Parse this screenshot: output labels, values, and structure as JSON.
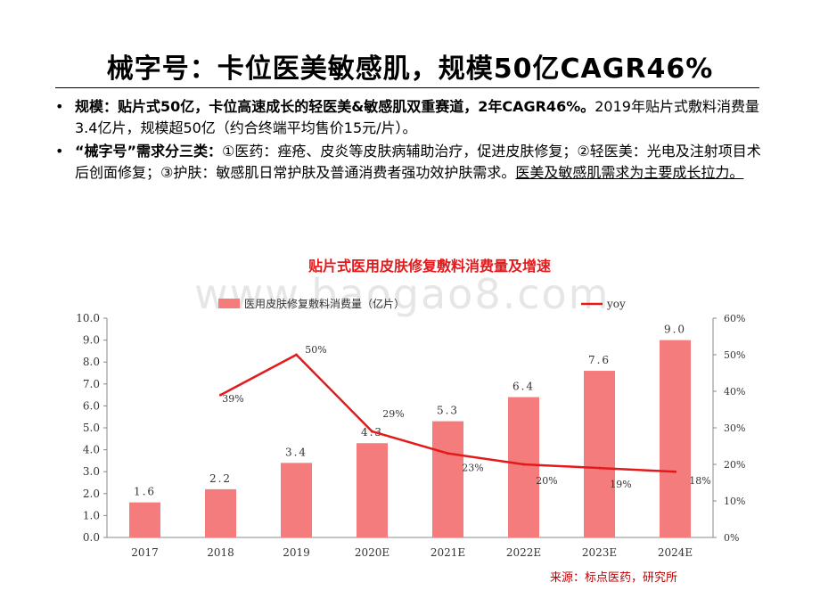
{
  "slide": {
    "title": "械字号：卡位医美敏感肌，规模50亿CAGR46%",
    "bullets": [
      {
        "bullet": "•",
        "lead": "规模：贴片式50亿，卡位高速成长的轻医美&敏感肌双重赛道，2年CAGR46%。",
        "rest": "2019年贴片式敷料消费量3.4亿片，规模超50亿（约合终端平均售价15元/片）。"
      },
      {
        "bullet": "•",
        "lead": "“械字号”需求分三类：",
        "rest": "①医药：痤疮、皮炎等皮肤病辅助治疗，促进皮肤修复；②轻医美：光电及注射项目术后创面修复；③护肤：敏感肌日常护肤及普通消费者强功效护肤需求。",
        "underlined": "医美及敏感肌需求为主要成长拉力。"
      }
    ],
    "watermark": "www.baogao8.com",
    "source": "来源：标点医药，研究所"
  },
  "chart_data": {
    "type": "bar+line",
    "title": "贴片式医用皮肤修复敷料消费量及增速",
    "categories": [
      "2017",
      "2018",
      "2019",
      "2020E",
      "2021E",
      "2022E",
      "2023E",
      "2024E"
    ],
    "series": [
      {
        "name": "医用皮肤修复敷料消费量（亿片）",
        "type": "bar",
        "axis": "left",
        "color": "#f47c7c",
        "values": [
          1.6,
          2.2,
          3.4,
          4.3,
          5.3,
          6.4,
          7.6,
          9.0
        ],
        "labels": [
          "1.6",
          "2.2",
          "3.4",
          "4.3",
          "5.3",
          "6.4",
          "7.6",
          "9.0"
        ]
      },
      {
        "name": "yoy",
        "type": "line",
        "axis": "right",
        "color": "#e31a1c",
        "values": [
          null,
          39,
          50,
          29,
          23,
          20,
          19,
          18
        ],
        "labels": [
          null,
          "39%",
          "50%",
          "29%",
          "23%",
          "20%",
          "19%",
          "18%"
        ]
      }
    ],
    "y_left": {
      "range": [
        0,
        10
      ],
      "ticks": [
        "0.0",
        "1.0",
        "2.0",
        "3.0",
        "4.0",
        "5.0",
        "6.0",
        "7.0",
        "8.0",
        "9.0",
        "10.0"
      ]
    },
    "y_right": {
      "range": [
        0,
        60
      ],
      "ticks": [
        "0%",
        "10%",
        "20%",
        "30%",
        "40%",
        "50%",
        "60%"
      ]
    },
    "legend_position": "top",
    "grid": false,
    "colors": {
      "title": "#e31a1c",
      "bar": "#f47c7c",
      "line": "#e31a1c",
      "source": "#c00000"
    }
  }
}
